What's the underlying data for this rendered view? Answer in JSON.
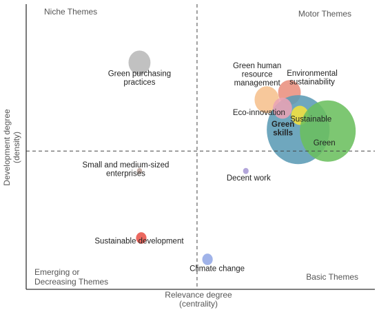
{
  "chart_data": {
    "type": "scatter",
    "title": "",
    "xlabel": [
      "Relevance degree",
      "(centrality)"
    ],
    "ylabel": [
      "Development degree",
      "(density)"
    ],
    "xlim": [
      0,
      1
    ],
    "ylim": [
      0,
      1
    ],
    "grid": false,
    "quadrants": {
      "top_left": "Niche Themes",
      "top_right": "Motor Themes",
      "bottom_left": [
        "Emerging or",
        "Decreasing Themes"
      ],
      "bottom_right": "Basic Themes"
    },
    "divider": {
      "x": 0.49,
      "y": 0.485
    },
    "points": [
      {
        "label": "Green purchasing practices",
        "lines": [
          "Green purchasing",
          "practices"
        ],
        "x": 0.325,
        "y": 0.795,
        "size": 0.063,
        "color": "#b8b8b8"
      },
      {
        "label": "Environmental sustainability",
        "lines": [
          "Environmental",
          "sustainability"
        ],
        "x": 0.755,
        "y": 0.69,
        "size": 0.065,
        "color": "#e9907e"
      },
      {
        "label": "Green human resource management",
        "lines": [
          "Green human",
          "resource",
          "management"
        ],
        "x": 0.69,
        "y": 0.665,
        "size": 0.07,
        "color": "#f6c08d"
      },
      {
        "label": "Green skills",
        "lines": [
          "Green",
          "skills"
        ],
        "x": 0.78,
        "y": 0.56,
        "size": 0.18,
        "color": "#5b9bb5",
        "bold": true
      },
      {
        "label": "Eco-innovation",
        "lines": [
          "Eco-innovation"
        ],
        "x": 0.735,
        "y": 0.635,
        "size": 0.055,
        "color": "#e9a3b5"
      },
      {
        "label": "Sustainable",
        "lines": [
          "Sustainable"
        ],
        "x": 0.785,
        "y": 0.61,
        "size": 0.05,
        "color": "#f5e13e"
      },
      {
        "label": "Green",
        "lines": [
          "Green"
        ],
        "x": 0.865,
        "y": 0.555,
        "size": 0.16,
        "color": "#6bbf5e"
      },
      {
        "label": "Small and medium-sized enterprises",
        "lines": [
          "Small and medium-sized",
          "enterprises"
        ],
        "x": 0.325,
        "y": 0.415,
        "size": 0.015,
        "color": "#b9a29a"
      },
      {
        "label": "Decent work",
        "lines": [
          "Decent work"
        ],
        "x": 0.63,
        "y": 0.415,
        "size": 0.016,
        "color": "#a99ad6"
      },
      {
        "label": "Sustainable development",
        "lines": [
          "Sustainable development"
        ],
        "x": 0.33,
        "y": 0.18,
        "size": 0.03,
        "color": "#e8534a"
      },
      {
        "label": "Climate change",
        "lines": [
          "Climate change"
        ],
        "x": 0.52,
        "y": 0.105,
        "size": 0.03,
        "color": "#93a9e6"
      }
    ]
  }
}
